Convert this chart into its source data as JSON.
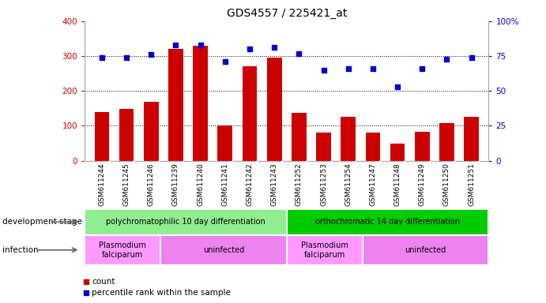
{
  "title": "GDS4557 / 225421_at",
  "samples": [
    "GSM611244",
    "GSM611245",
    "GSM611246",
    "GSM611239",
    "GSM611240",
    "GSM611241",
    "GSM611242",
    "GSM611243",
    "GSM611252",
    "GSM611253",
    "GSM611254",
    "GSM611247",
    "GSM611248",
    "GSM611249",
    "GSM611250",
    "GSM611251"
  ],
  "counts": [
    140,
    148,
    168,
    320,
    330,
    100,
    270,
    295,
    138,
    80,
    126,
    80,
    48,
    82,
    108,
    125
  ],
  "percentiles": [
    74,
    74,
    76,
    83,
    83,
    71,
    80,
    81,
    77,
    65,
    66,
    66,
    53,
    66,
    73,
    74
  ],
  "bar_color": "#cc0000",
  "dot_color": "#0000cc",
  "ylim_left": [
    0,
    400
  ],
  "ylim_right": [
    0,
    100
  ],
  "yticks_left": [
    0,
    100,
    200,
    300,
    400
  ],
  "yticks_right": [
    0,
    25,
    50,
    75,
    100
  ],
  "yticklabels_right": [
    "0",
    "25",
    "50",
    "75",
    "100%"
  ],
  "grid_values": [
    100,
    200,
    300
  ],
  "dev_stage_groups": [
    {
      "label": "polychromatophilic 10 day differentiation",
      "start": 0,
      "end": 8,
      "color": "#90ee90"
    },
    {
      "label": "orthochromatic 14 day differentiation",
      "start": 8,
      "end": 16,
      "color": "#00cc00"
    }
  ],
  "infection_groups": [
    {
      "label": "Plasmodium\nfalciparum",
      "start": 0,
      "end": 3,
      "color": "#ff99ff"
    },
    {
      "label": "uninfected",
      "start": 3,
      "end": 8,
      "color": "#ee82ee"
    },
    {
      "label": "Plasmodium\nfalciparum",
      "start": 8,
      "end": 11,
      "color": "#ff99ff"
    },
    {
      "label": "uninfected",
      "start": 11,
      "end": 16,
      "color": "#ee82ee"
    }
  ],
  "left_label_devstage": "development stage",
  "left_label_infection": "infection",
  "bg_color": "#ffffff",
  "tick_area_color": "#d3d3d3",
  "figsize": [
    6.91,
    3.84
  ],
  "dpi": 100
}
